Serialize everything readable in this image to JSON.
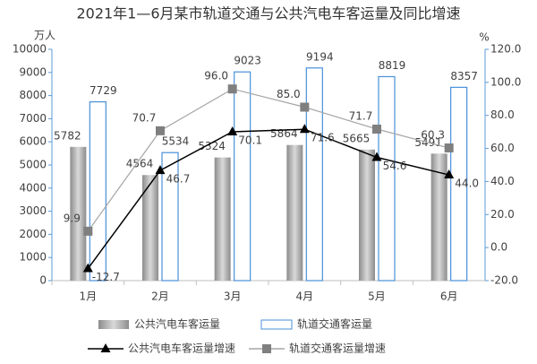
{
  "chart_data": {
    "type": "bar",
    "title": "2021年1—6月某市轨道交通与公共汽电车客运量及同比增速",
    "y_label": "万人",
    "y2_label": "%",
    "categories": [
      "1月",
      "2月",
      "3月",
      "4月",
      "5月",
      "6月"
    ],
    "series": [
      {
        "name": "公共汽电车客运量",
        "type": "bar",
        "color": "#bfbfbf",
        "values": [
          5782,
          4564,
          5324,
          5864,
          5665,
          5491
        ]
      },
      {
        "name": "轨道交通客运量",
        "type": "bar",
        "color": "#4a90d9",
        "values": [
          7729,
          5534,
          9023,
          9194,
          8819,
          8357
        ]
      },
      {
        "name": "公共汽电车客运量增速",
        "type": "line",
        "axis": "y2",
        "color": "#000000",
        "marker": "triangle",
        "values": [
          -12.7,
          46.7,
          70.1,
          71.6,
          54.6,
          44.0
        ],
        "value_labels": [
          "-12.7",
          "46.7",
          "70.1",
          "71.6",
          "54.6",
          "44.0"
        ]
      },
      {
        "name": "轨道交通客运量增速",
        "type": "line",
        "axis": "y2",
        "color": "#a6a6a6",
        "marker_color": "#7f7f7f",
        "marker": "square",
        "values": [
          9.9,
          70.7,
          96.0,
          85.0,
          71.7,
          60.3
        ],
        "value_labels": [
          "9.9",
          "70.7",
          "96.0",
          "85.0",
          "71.7",
          "60.3"
        ]
      }
    ],
    "ylim": [
      0,
      10000
    ],
    "yticks": [
      0,
      1000,
      2000,
      3000,
      4000,
      5000,
      6000,
      7000,
      8000,
      9000,
      10000
    ],
    "y2lim": [
      -20,
      120
    ],
    "y2ticks": [
      {
        "value": -20,
        "label": "-20.0"
      },
      {
        "value": 0,
        "label": "0.0"
      },
      {
        "value": 20,
        "label": "20.0"
      },
      {
        "value": 40,
        "label": "40.0"
      },
      {
        "value": 60,
        "label": "60.0"
      },
      {
        "value": 80,
        "label": "80.0"
      },
      {
        "value": 100,
        "label": "100.0"
      },
      {
        "value": 120,
        "label": "120.0"
      }
    ],
    "grid": false
  }
}
